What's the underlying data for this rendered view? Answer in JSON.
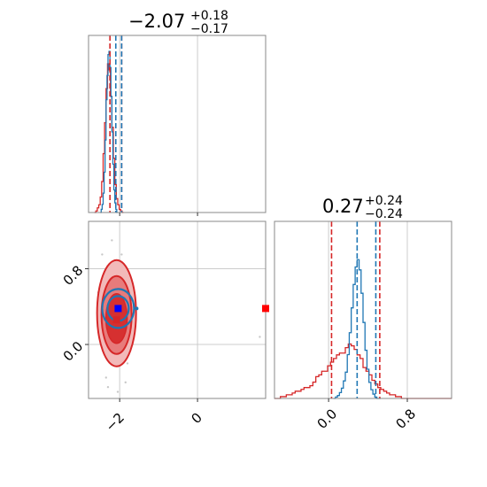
{
  "chart_data": {
    "type": "corner",
    "parameters": [
      {
        "title_main": "−2.07",
        "title_sup": "+0.18",
        "title_sub": "−0.17",
        "xlim": [
          -2.8,
          1.75
        ],
        "ticks": [
          -2,
          0
        ],
        "tick_labels": [
          "−2",
          "0"
        ],
        "median": -2.07,
        "lower": -2.24,
        "upper": -1.89
      },
      {
        "title_main": "0.27",
        "title_sup": "+0.24",
        "title_sub": "−0.24",
        "xlim": [
          -0.55,
          1.25
        ],
        "ticks": [
          0.0,
          0.8
        ],
        "tick_labels": [
          "0.0",
          "0.8"
        ],
        "median": 0.27,
        "lower": 0.03,
        "upper": 0.51
      }
    ],
    "series": [
      {
        "color": "#d62728",
        "param1_hist": {
          "bin_edges_start": -2.65,
          "bin_width": 0.0375,
          "heights": [
            0.0,
            0.01,
            0.03,
            0.05,
            0.1,
            0.2,
            0.38,
            0.58,
            0.8,
            0.96,
            0.92,
            0.75,
            0.55,
            0.35,
            0.18,
            0.09,
            0.05,
            0.02,
            0.01,
            0.0
          ]
        },
        "param2_hist": {
          "bin_edges_start": -0.55,
          "bin_width": 0.03,
          "heights": [
            0.0,
            0.0,
            0.01,
            0.01,
            0.02,
            0.02,
            0.03,
            0.04,
            0.04,
            0.05,
            0.06,
            0.06,
            0.07,
            0.09,
            0.12,
            0.13,
            0.15,
            0.15,
            0.18,
            0.2,
            0.22,
            0.24,
            0.25,
            0.25,
            0.28,
            0.3,
            0.29,
            0.27,
            0.24,
            0.22,
            0.17,
            0.15,
            0.13,
            0.1,
            0.08,
            0.06,
            0.05,
            0.04,
            0.03,
            0.02,
            0.02,
            0.01,
            0.01,
            0.0,
            0.0,
            0.0,
            0.0,
            0.0,
            0.0,
            0.0,
            0.0,
            0.0,
            0.0,
            0.0,
            0.0,
            0.0,
            0.0,
            0.0,
            0.0,
            0.0
          ]
        },
        "lines": {
          "param1": [
            -2.25,
            -1.95
          ],
          "param2": [
            0.03,
            0.52
          ]
        },
        "marker": {
          "param1": -2.08,
          "param2": 0.26
        },
        "outlier": {
          "param1": 1.75,
          "param2": 0.38
        }
      },
      {
        "color": "#1f77b4",
        "param1_hist": {
          "bin_edges_start": -2.5,
          "bin_width": 0.025,
          "heights": [
            0.0,
            0.02,
            0.05,
            0.12,
            0.25,
            0.45,
            0.7,
            0.85,
            0.98,
            1.0,
            0.9,
            0.72,
            0.5,
            0.3,
            0.14,
            0.06,
            0.02,
            0.0
          ]
        },
        "param2_hist": {
          "bin_edges_start": 0.05,
          "bin_width": 0.02,
          "heights": [
            0.0,
            0.01,
            0.02,
            0.04,
            0.07,
            0.12,
            0.18,
            0.3,
            0.45,
            0.62,
            0.78,
            0.9,
            0.95,
            0.88,
            0.72,
            0.52,
            0.33,
            0.2,
            0.11,
            0.06,
            0.03,
            0.01,
            0.0,
            0.0
          ]
        },
        "lines": {
          "param1": [
            -2.1,
            -1.95
          ],
          "param2": [
            0.29,
            0.48
          ]
        },
        "marker": {
          "param1": -2.04,
          "param2": 0.38
        }
      }
    ],
    "grid": true
  }
}
